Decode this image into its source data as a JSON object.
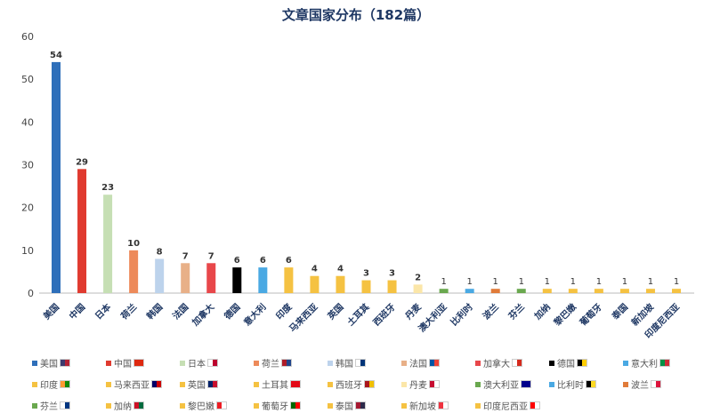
{
  "chart_data": {
    "type": "bar",
    "title": "文章国家分布（182篇）",
    "categories": [
      "美国",
      "中国",
      "日本",
      "荷兰",
      "韩国",
      "法国",
      "加拿大",
      "德国",
      "意大利",
      "印度",
      "马来西亚",
      "英国",
      "土耳其",
      "西班牙",
      "丹麦",
      "澳大利亚",
      "比利时",
      "波兰",
      "芬兰",
      "加纳",
      "黎巴嫩",
      "葡萄牙",
      "泰国",
      "新加坡",
      "印度尼西亚"
    ],
    "values": [
      54,
      29,
      23,
      10,
      8,
      7,
      7,
      6,
      6,
      6,
      4,
      4,
      3,
      3,
      2,
      1,
      1,
      1,
      1,
      1,
      1,
      1,
      1,
      1,
      1
    ],
    "colors": [
      "#2e6fba",
      "#e03a2f",
      "#c6dfb4",
      "#ed8a5a",
      "#bdd3ec",
      "#e8b088",
      "#e8474a",
      "#000000",
      "#4aa9e3",
      "#f5c242",
      "#f5c242",
      "#f5c242",
      "#f5c242",
      "#f5c242",
      "#fbe6a8",
      "#6aa84f",
      "#4aa9e3",
      "#e07b39",
      "#6aa84f",
      "#f5c242",
      "#f5c242",
      "#f5c242",
      "#f5c242",
      "#f5c242",
      "#f5c242"
    ],
    "flags": [
      "us-flag",
      "china-flag",
      "japan-flag",
      "netherlands-flag",
      "korea-flag",
      "france-flag",
      "canada-flag",
      "germany-flag",
      "italy-flag",
      "india-flag",
      "malaysia-flag",
      "uk-flag",
      "turkey-flag",
      "spain-flag",
      "denmark-flag",
      "australia-flag",
      "belgium-flag",
      "poland-flag",
      "finland-flag",
      "ghana-flag",
      "lebanon-flag",
      "portugal-flag",
      "thailand-flag",
      "singapore-flag",
      "indonesia-flag"
    ],
    "ylim": [
      0,
      60
    ],
    "yticks": [
      0,
      10,
      20,
      30,
      40,
      50,
      60
    ],
    "grid": false,
    "legend": "bottom",
    "xlabel": "",
    "ylabel": ""
  }
}
